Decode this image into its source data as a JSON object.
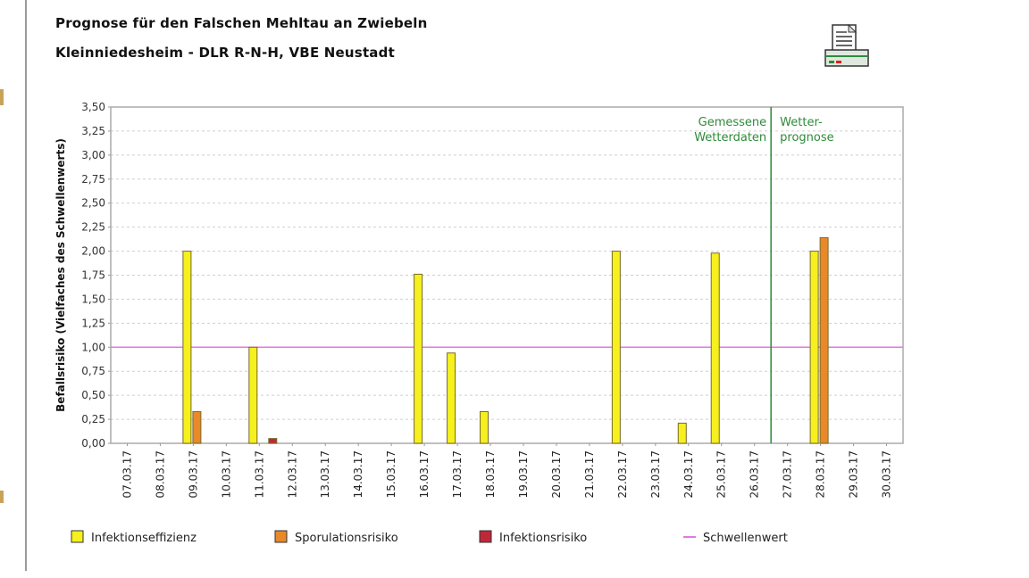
{
  "header": {
    "title": "Prognose für den Falschen Mehltau an Zwiebeln",
    "subtitle": "Kleinniedesheim - DLR R-N-H, VBE Neustadt",
    "print_icon": "printer-icon"
  },
  "chart_data": {
    "type": "bar",
    "ylabel": "Befallsrisiko (Vielfaches des Schwellenwerts)",
    "xlabel": "",
    "ylim": [
      0,
      3.5
    ],
    "yticks": [
      "0,00",
      "0,25",
      "0,50",
      "0,75",
      "1,00",
      "1,25",
      "1,50",
      "1,75",
      "2,00",
      "2,25",
      "2,50",
      "2,75",
      "3,00",
      "3,25",
      "3,50"
    ],
    "grid": true,
    "categories": [
      "07.03.17",
      "08.03.17",
      "09.03.17",
      "10.03.17",
      "11.03.17",
      "12.03.17",
      "13.03.17",
      "14.03.17",
      "15.03.17",
      "16.03.17",
      "17.03.17",
      "18.03.17",
      "19.03.17",
      "20.03.17",
      "21.03.17",
      "22.03.17",
      "23.03.17",
      "24.03.17",
      "25.03.17",
      "26.03.17",
      "27.03.17",
      "28.03.17",
      "29.03.17",
      "30.03.17"
    ],
    "series": [
      {
        "name": "Infektionseffizienz",
        "color": "#f5f01e",
        "values": [
          0,
          0,
          2.0,
          0,
          1.0,
          0,
          0,
          0,
          0,
          1.76,
          0.94,
          0.33,
          0,
          0,
          0,
          2.0,
          0,
          0.21,
          1.98,
          0,
          0,
          2.0,
          0,
          0
        ]
      },
      {
        "name": "Sporulationsrisiko",
        "color": "#e8892a",
        "values": [
          0,
          0,
          0.33,
          0,
          0,
          0,
          0,
          0,
          0,
          0,
          0,
          0,
          0,
          0,
          0,
          0,
          0,
          0,
          0,
          0,
          0,
          2.14,
          0,
          0
        ]
      },
      {
        "name": "Infektionsrisiko",
        "color": "#c0283a",
        "values": [
          0,
          0,
          0,
          0,
          0.05,
          0,
          0,
          0,
          0,
          0,
          0,
          0,
          0,
          0,
          0,
          0,
          0,
          0,
          0,
          0,
          0,
          0,
          0,
          0
        ]
      }
    ],
    "threshold": {
      "name": "Schwellenwert",
      "value": 1.0,
      "color": "#e07ae0"
    },
    "divider": {
      "after_category": "26.03.17",
      "color": "#2e8b3a",
      "left_label": [
        "Gemessene",
        "Wetterdaten"
      ],
      "right_label": [
        "Wetter-",
        "prognose"
      ]
    },
    "legend_position": "bottom"
  }
}
